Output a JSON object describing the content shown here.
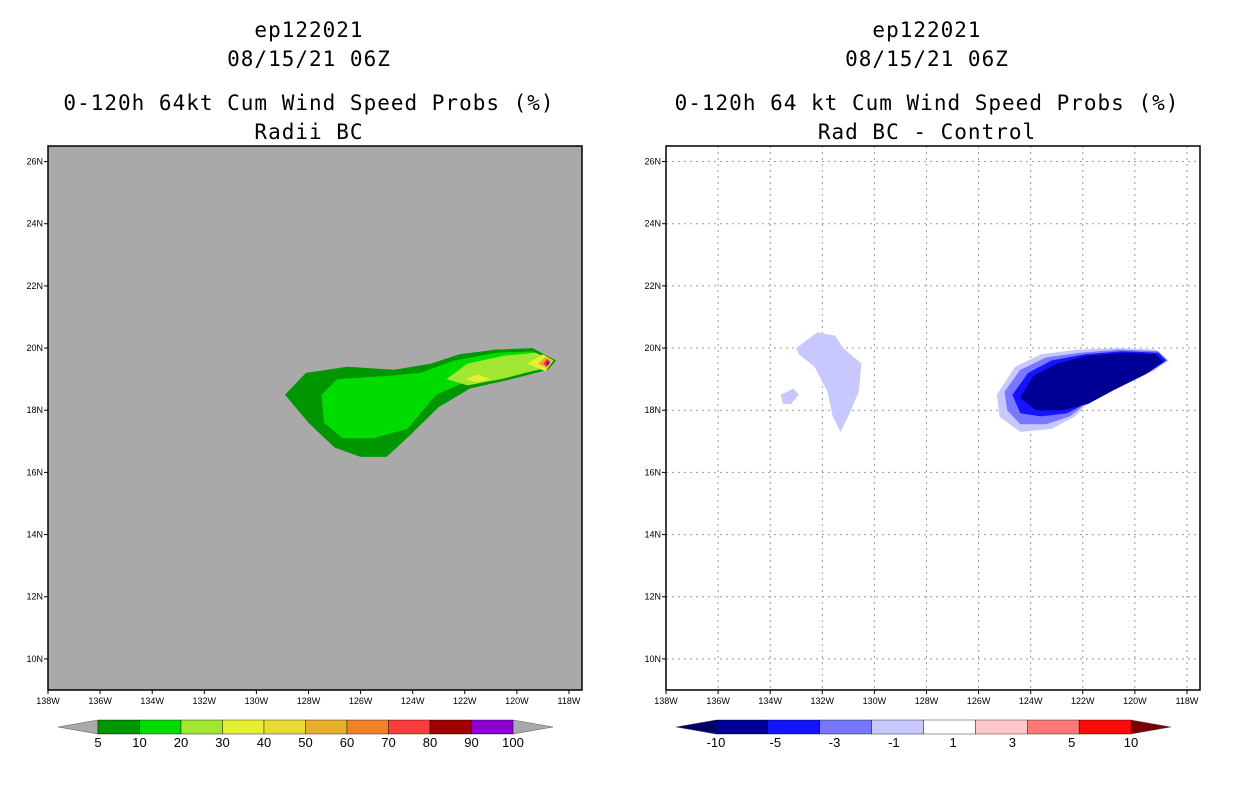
{
  "chart_data": [
    {
      "type": "heatmap",
      "storm_id": "ep122021",
      "datetime": "08/15/21 06Z",
      "title": "0-120h 64kt Cum Wind Speed Probs (%)",
      "subtitle": "Radii BC",
      "background": "#a9a9a9",
      "xlim": [
        -138,
        -117.5
      ],
      "ylim": [
        9,
        26.5
      ],
      "x_ticks": [
        -138,
        -136,
        -134,
        -132,
        -130,
        -128,
        -126,
        -124,
        -122,
        -120,
        -118
      ],
      "x_tick_labels": [
        "138W",
        "136W",
        "134W",
        "132W",
        "130W",
        "128W",
        "126W",
        "124W",
        "122W",
        "120W",
        "118W"
      ],
      "y_ticks": [
        10,
        12,
        14,
        16,
        18,
        20,
        22,
        24,
        26
      ],
      "y_tick_labels": [
        "10N",
        "12N",
        "14N",
        "16N",
        "18N",
        "20N",
        "22N",
        "24N",
        "26N"
      ],
      "grid": false,
      "colorbar": {
        "labels": [
          "5",
          "10",
          "20",
          "30",
          "40",
          "50",
          "60",
          "70",
          "80",
          "90",
          "100"
        ],
        "colors": [
          "#009600",
          "#00dc00",
          "#a0e632",
          "#e6f032",
          "#e6dc32",
          "#e6af2d",
          "#f08228",
          "#fa3c3c",
          "#a00000",
          "#8c00d2"
        ],
        "under_color": "#a9a9a9",
        "over_color": "#a9a9a9"
      },
      "contours": [
        {
          "level": 5,
          "color": "#009600",
          "lonlat": [
            [
              -128.9,
              18.5
            ],
            [
              -128.1,
              19.2
            ],
            [
              -126.5,
              19.4
            ],
            [
              -124.7,
              19.3
            ],
            [
              -123.3,
              19.5
            ],
            [
              -122.2,
              19.8
            ],
            [
              -120.8,
              19.95
            ],
            [
              -119.4,
              20.0
            ],
            [
              -118.5,
              19.6
            ],
            [
              -118.8,
              19.3
            ],
            [
              -120.2,
              19.0
            ],
            [
              -121.8,
              18.7
            ],
            [
              -123.0,
              18.1
            ],
            [
              -124.1,
              17.2
            ],
            [
              -125.0,
              16.5
            ],
            [
              -126.0,
              16.5
            ],
            [
              -127.0,
              16.8
            ],
            [
              -128.0,
              17.6
            ]
          ]
        },
        {
          "level": 10,
          "color": "#00dc00",
          "lonlat": [
            [
              -127.5,
              18.5
            ],
            [
              -126.9,
              19.0
            ],
            [
              -125.0,
              19.1
            ],
            [
              -123.7,
              19.2
            ],
            [
              -122.4,
              19.6
            ],
            [
              -120.8,
              19.85
            ],
            [
              -119.4,
              19.9
            ],
            [
              -118.6,
              19.6
            ],
            [
              -119.0,
              19.3
            ],
            [
              -120.5,
              19.15
            ],
            [
              -122.0,
              18.9
            ],
            [
              -123.1,
              18.5
            ],
            [
              -124.2,
              17.4
            ],
            [
              -125.5,
              17.1
            ],
            [
              -126.7,
              17.1
            ],
            [
              -127.4,
              17.6
            ]
          ]
        },
        {
          "level": 20,
          "color": "#a0e632",
          "lonlat": [
            [
              -122.7,
              19.0
            ],
            [
              -121.9,
              19.5
            ],
            [
              -120.5,
              19.75
            ],
            [
              -119.3,
              19.85
            ],
            [
              -118.6,
              19.6
            ],
            [
              -119.2,
              19.3
            ],
            [
              -120.6,
              19.0
            ],
            [
              -121.9,
              18.8
            ]
          ]
        },
        {
          "level": 30,
          "color": "#e6f032",
          "lonlat": [
            [
              -122.0,
              19.0
            ],
            [
              -121.5,
              19.15
            ],
            [
              -121.0,
              19.0
            ],
            [
              -121.5,
              18.9
            ]
          ]
        },
        {
          "level": 30,
          "color": "#e6f032",
          "lonlat": [
            [
              -119.6,
              19.5
            ],
            [
              -119.0,
              19.8
            ],
            [
              -118.6,
              19.6
            ],
            [
              -118.9,
              19.25
            ]
          ]
        },
        {
          "level": 50,
          "color": "#e6af2d",
          "lonlat": [
            [
              -119.2,
              19.5
            ],
            [
              -118.9,
              19.72
            ],
            [
              -118.65,
              19.6
            ],
            [
              -118.85,
              19.35
            ]
          ]
        },
        {
          "level": 70,
          "color": "#fa3c3c",
          "lonlat": [
            [
              -119.0,
              19.5
            ],
            [
              -118.85,
              19.65
            ],
            [
              -118.7,
              19.55
            ],
            [
              -118.85,
              19.4
            ]
          ]
        },
        {
          "level": 90,
          "color": "#8c00d2",
          "lonlat": [
            [
              -118.9,
              19.5
            ],
            [
              -118.82,
              19.6
            ],
            [
              -118.74,
              19.52
            ],
            [
              -118.82,
              19.43
            ]
          ]
        }
      ]
    },
    {
      "type": "heatmap",
      "storm_id": "ep122021",
      "datetime": "08/15/21 06Z",
      "title": "0-120h 64 kt Cum Wind Speed Probs (%)",
      "subtitle": "Rad BC - Control",
      "background": "#ffffff",
      "xlim": [
        -138,
        -117.5
      ],
      "ylim": [
        9,
        26.5
      ],
      "x_ticks": [
        -138,
        -136,
        -134,
        -132,
        -130,
        -128,
        -126,
        -124,
        -122,
        -120,
        -118
      ],
      "x_tick_labels": [
        "138W",
        "136W",
        "134W",
        "132W",
        "130W",
        "128W",
        "126W",
        "124W",
        "122W",
        "120W",
        "118W"
      ],
      "y_ticks": [
        10,
        12,
        14,
        16,
        18,
        20,
        22,
        24,
        26
      ],
      "y_tick_labels": [
        "10N",
        "12N",
        "14N",
        "16N",
        "18N",
        "20N",
        "22N",
        "24N",
        "26N"
      ],
      "grid": true,
      "colorbar": {
        "labels": [
          "-10",
          "-5",
          "-3",
          "-1",
          "1",
          "3",
          "5",
          "10"
        ],
        "colors": [
          "#000096",
          "#1414ff",
          "#7878ff",
          "#c8c8ff",
          "#ffffff",
          "#ffc8c8",
          "#ff7878",
          "#ff0a0a"
        ],
        "under_color": "#000064",
        "over_color": "#780000"
      },
      "contours": [
        {
          "level": -1,
          "color": "#c8c8ff",
          "lonlat": [
            [
              -133.0,
              20.0
            ],
            [
              -132.2,
              20.5
            ],
            [
              -131.5,
              20.4
            ],
            [
              -131.2,
              20.0
            ],
            [
              -130.5,
              19.5
            ],
            [
              -130.6,
              18.6
            ],
            [
              -131.0,
              17.8
            ],
            [
              -131.3,
              17.3
            ],
            [
              -131.6,
              17.8
            ],
            [
              -131.8,
              18.6
            ],
            [
              -132.3,
              19.4
            ],
            [
              -132.9,
              19.8
            ]
          ]
        },
        {
          "level": -1,
          "color": "#c8c8ff",
          "lonlat": [
            [
              -133.6,
              18.5
            ],
            [
              -133.1,
              18.7
            ],
            [
              -132.9,
              18.5
            ],
            [
              -133.2,
              18.2
            ],
            [
              -133.5,
              18.2
            ]
          ]
        },
        {
          "level": -1,
          "color": "#c8c8ff",
          "lonlat": [
            [
              -125.3,
              18.5
            ],
            [
              -124.6,
              19.4
            ],
            [
              -123.6,
              19.8
            ],
            [
              -122.2,
              19.95
            ],
            [
              -120.7,
              20.0
            ],
            [
              -119.2,
              19.95
            ],
            [
              -118.7,
              19.6
            ],
            [
              -119.3,
              19.25
            ],
            [
              -120.5,
              18.9
            ],
            [
              -121.5,
              18.5
            ],
            [
              -122.3,
              17.8
            ],
            [
              -123.2,
              17.4
            ],
            [
              -124.4,
              17.3
            ],
            [
              -125.2,
              17.8
            ]
          ]
        },
        {
          "level": -3,
          "color": "#7878ff",
          "lonlat": [
            [
              -125.0,
              18.6
            ],
            [
              -124.4,
              19.3
            ],
            [
              -123.4,
              19.7
            ],
            [
              -122.1,
              19.85
            ],
            [
              -120.6,
              19.95
            ],
            [
              -119.1,
              19.9
            ],
            [
              -118.75,
              19.6
            ],
            [
              -119.4,
              19.25
            ],
            [
              -120.6,
              18.85
            ],
            [
              -121.6,
              18.4
            ],
            [
              -122.5,
              17.8
            ],
            [
              -123.4,
              17.55
            ],
            [
              -124.4,
              17.55
            ],
            [
              -124.9,
              18.0
            ]
          ]
        },
        {
          "level": -5,
          "color": "#1414ff",
          "lonlat": [
            [
              -124.7,
              18.5
            ],
            [
              -124.1,
              19.2
            ],
            [
              -123.2,
              19.6
            ],
            [
              -121.9,
              19.8
            ],
            [
              -120.5,
              19.9
            ],
            [
              -119.1,
              19.85
            ],
            [
              -118.8,
              19.6
            ],
            [
              -119.5,
              19.2
            ],
            [
              -120.7,
              18.75
            ],
            [
              -121.7,
              18.3
            ],
            [
              -122.6,
              17.9
            ],
            [
              -123.6,
              17.8
            ],
            [
              -124.4,
              17.9
            ]
          ]
        },
        {
          "level": -10,
          "color": "#000096",
          "lonlat": [
            [
              -124.4,
              18.4
            ],
            [
              -123.9,
              19.1
            ],
            [
              -123.0,
              19.5
            ],
            [
              -121.8,
              19.75
            ],
            [
              -120.4,
              19.85
            ],
            [
              -119.2,
              19.8
            ],
            [
              -118.9,
              19.55
            ],
            [
              -119.6,
              19.15
            ],
            [
              -120.8,
              18.65
            ],
            [
              -121.8,
              18.2
            ],
            [
              -122.8,
              18.0
            ],
            [
              -123.8,
              18.0
            ]
          ]
        }
      ]
    }
  ]
}
